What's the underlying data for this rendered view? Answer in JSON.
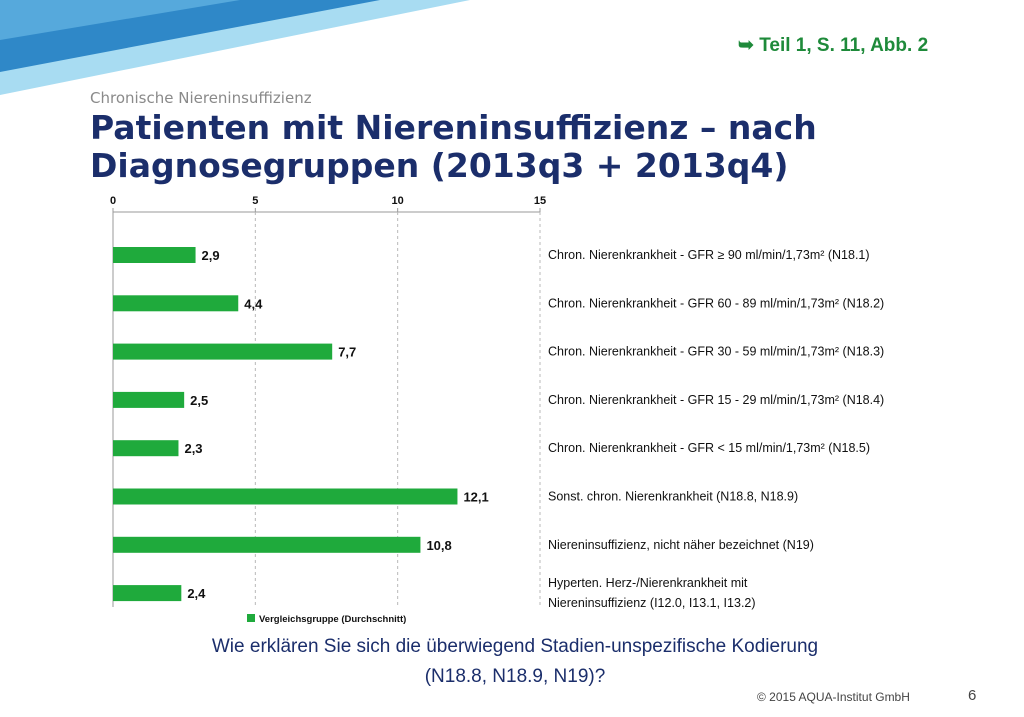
{
  "header": {
    "reference": "➥ Teil  1, S. 11, Abb. 2",
    "subtitle": "Chronische Niereninsuffizienz",
    "title": "Patienten mit Niereninsuffizienz – nach Diagnosegruppen (2013q3 + 2013q4)"
  },
  "question": {
    "line1": "Wie erklären Sie sich die überwiegend Stadien-unspezifische Kodierung",
    "line2": "(N18.8, N18.9, N19)?"
  },
  "footer": {
    "copyright": "© 2015 AQUA-Institut GmbH",
    "page_number": "6"
  },
  "colors": {
    "bar": "#1faa3c",
    "title": "#1b2e6b",
    "reference": "#1e8a3a",
    "banner_dark": "#2f88c8",
    "banner_light": "#9cd3ee"
  },
  "chart_data": {
    "type": "bar",
    "orientation": "horizontal",
    "xlim": [
      0,
      15
    ],
    "ticks": [
      0,
      5,
      10,
      15
    ],
    "tick_labels": [
      "0",
      "5",
      "10",
      "15"
    ],
    "grid": true,
    "legend_position": "bottom",
    "categories": [
      [
        "Chron. Nierenkrankheit - GFR ≥ 90 ml/min/1,73m² (N18.1)"
      ],
      [
        "Chron. Nierenkrankheit - GFR 60 - 89 ml/min/1,73m² (N18.2)"
      ],
      [
        "Chron. Nierenkrankheit - GFR 30 - 59 ml/min/1,73m² (N18.3)"
      ],
      [
        "Chron. Nierenkrankheit - GFR 15 - 29 ml/min/1,73m² (N18.4)"
      ],
      [
        "Chron. Nierenkrankheit - GFR < 15 ml/min/1,73m² (N18.5)"
      ],
      [
        "Sonst. chron. Nierenkrankheit (N18.8, N18.9)"
      ],
      [
        "Niereninsuffizienz, nicht näher bezeichnet (N19)"
      ],
      [
        "Hyperten. Herz-/Nierenkrankheit mit",
        "Niereninsuffizienz (I12.0, I13.1, I13.2)"
      ]
    ],
    "series": [
      {
        "name": "Vergleichsgruppe (Durchschnitt)",
        "values": [
          2.9,
          4.4,
          7.7,
          2.5,
          2.3,
          12.1,
          10.8,
          2.4
        ],
        "value_labels": [
          "2,9",
          "4,4",
          "7,7",
          "2,5",
          "2,3",
          "12,1",
          "10,8",
          "2,4"
        ]
      }
    ]
  }
}
